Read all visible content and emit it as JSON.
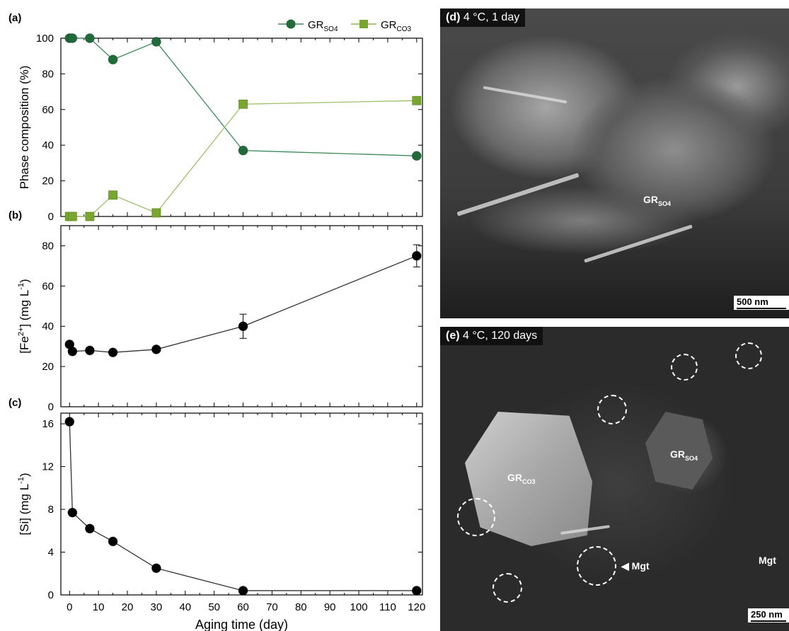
{
  "legend": [
    {
      "base": "GR",
      "sub": "SO4",
      "color": "#1f6b3a",
      "marker": "circle"
    },
    {
      "base": "GR",
      "sub": "CO3",
      "color": "#7aa62f",
      "marker": "square"
    }
  ],
  "chart_data": [
    {
      "panel": "(a)",
      "type": "line",
      "ylabel": "Phase composition (%)",
      "ylim": [
        0,
        100
      ],
      "yticks": [
        0,
        20,
        40,
        60,
        80,
        100
      ],
      "xlim": [
        -3,
        122
      ],
      "series": [
        {
          "name": "GRSO4",
          "x": [
            0,
            1,
            7,
            15,
            30,
            60,
            120
          ],
          "values": [
            100,
            100,
            100,
            88,
            98,
            37,
            34
          ]
        },
        {
          "name": "GRCO3",
          "x": [
            0,
            1,
            7,
            15,
            30,
            60,
            120
          ],
          "values": [
            0,
            0,
            0,
            12,
            2,
            63,
            65
          ]
        }
      ]
    },
    {
      "panel": "(b)",
      "type": "line",
      "ylabel": "[Fe2+] (mg L-1)",
      "ylim": [
        0,
        90
      ],
      "yticks": [
        0,
        20,
        40,
        60,
        80
      ],
      "xlim": [
        -3,
        122
      ],
      "series": [
        {
          "x": [
            0,
            1,
            7,
            15,
            30,
            60,
            120
          ],
          "values": [
            31,
            27.5,
            28,
            27,
            28.5,
            40,
            75
          ],
          "error": [
            0,
            0,
            0,
            0,
            0,
            6,
            5.5
          ]
        }
      ]
    },
    {
      "panel": "(c)",
      "type": "line",
      "ylabel": "[Si] (mg L-1)",
      "xlabel": "Aging time (day)",
      "ylim": [
        0,
        17
      ],
      "yticks": [
        0,
        4,
        8,
        12,
        16
      ],
      "xlim": [
        -3,
        122
      ],
      "xticks": [
        0,
        10,
        20,
        30,
        40,
        50,
        60,
        70,
        80,
        90,
        100,
        110,
        120
      ],
      "series": [
        {
          "x": [
            0,
            1,
            7,
            15,
            30,
            60,
            120
          ],
          "values": [
            16.2,
            7.7,
            6.2,
            5.0,
            2.5,
            0.4,
            0.4
          ]
        }
      ]
    }
  ],
  "images": {
    "d": {
      "label": "(d)",
      "caption": "4 °C, 1 day",
      "annotation_base": "GR",
      "annotation_sub": "SO4",
      "scale": "500 nm"
    },
    "e": {
      "label": "(e)",
      "caption": "4 °C, 120 days",
      "annotation1_base": "GR",
      "annotation1_sub": "CO3",
      "annotation2_base": "GR",
      "annotation2_sub": "SO4",
      "mgt1": "◀ Mgt",
      "mgt2": "Mgt",
      "scale": "250 nm"
    }
  }
}
